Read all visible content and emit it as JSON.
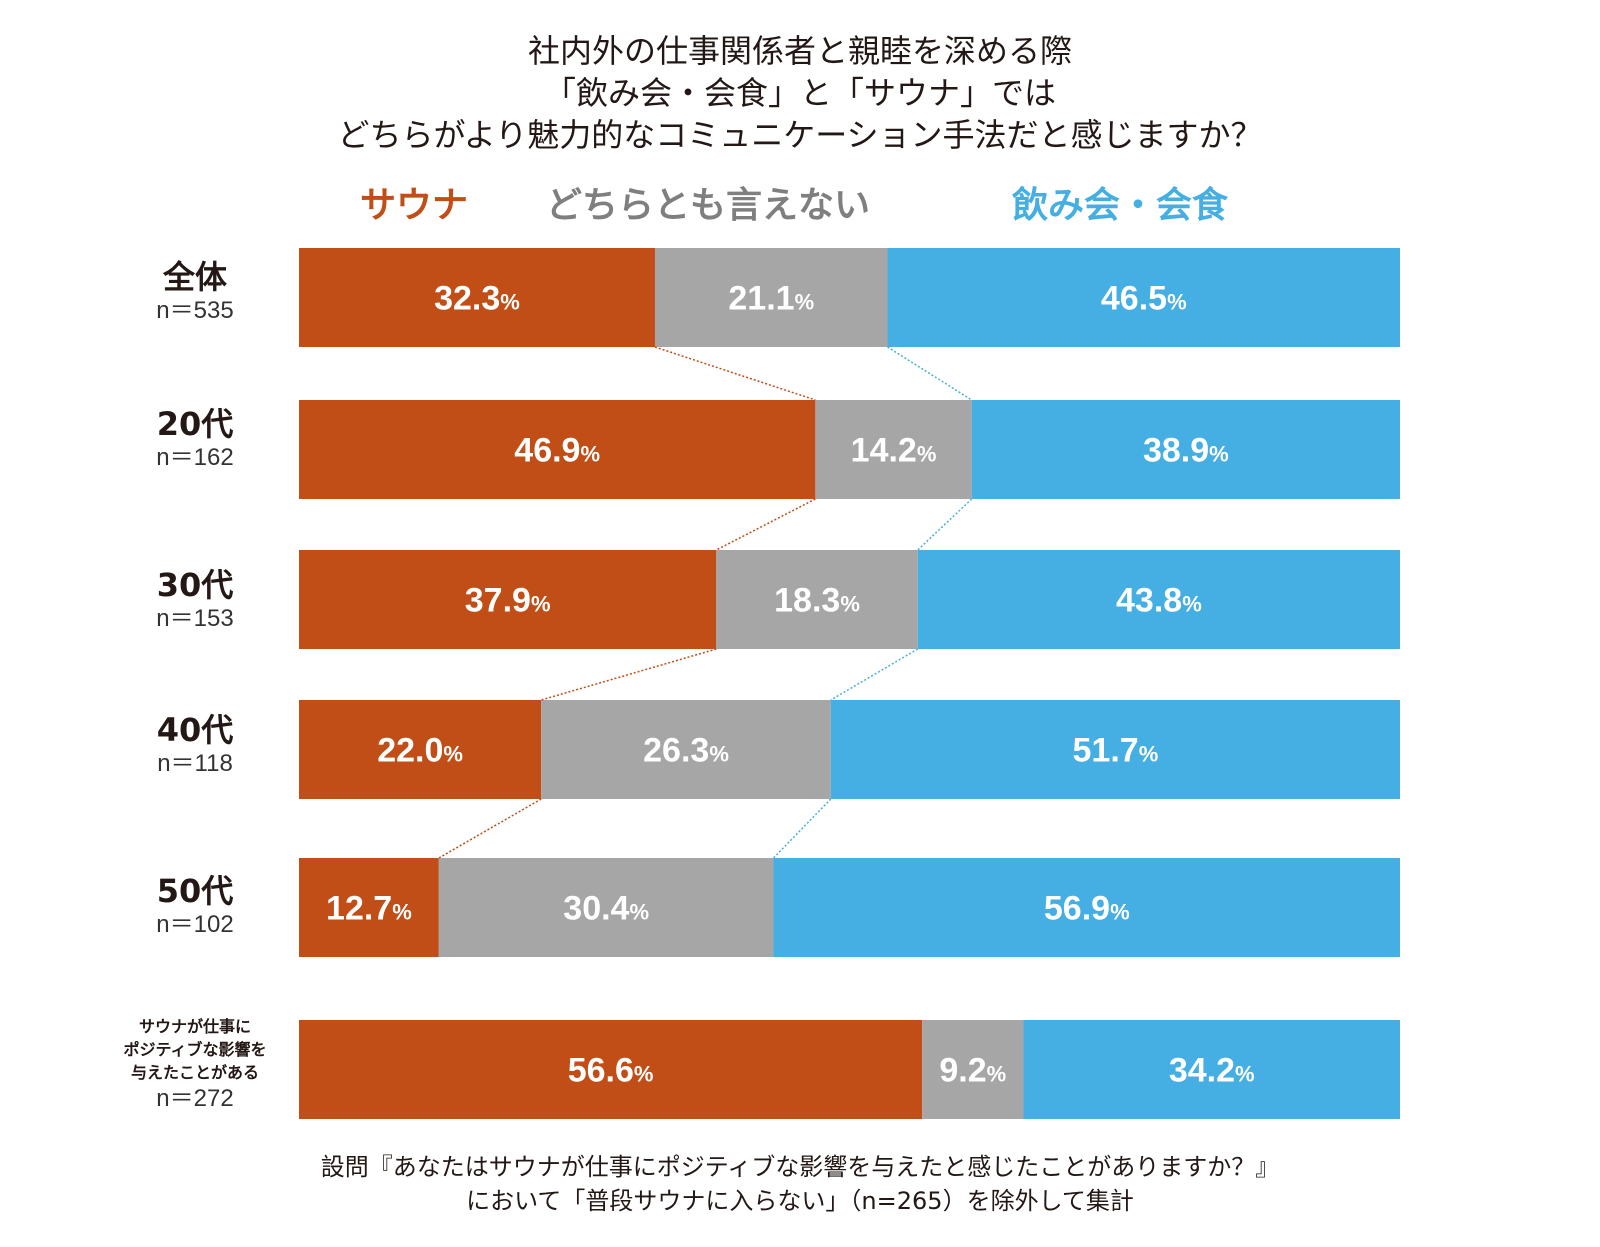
{
  "title_lines": [
    "社内外の仕事関係者と親睦を深める際",
    "「飲み会・会食」と「サウナ」では",
    "どちらがより魅力的なコミュニケーション手法だと感じますか？"
  ],
  "footnote_lines": [
    "設問『あなたはサウナが仕事にポジティブな影響を与えたと感じたことがありますか？』",
    "において「普段サウナに入らない」（n=265）を除外して集計"
  ],
  "chart_data": {
    "type": "bar",
    "orientation": "horizontal-stacked-100",
    "legend_placement": "top",
    "series": [
      {
        "name": "サウナ",
        "color": "#c04e16"
      },
      {
        "name": "どちらとも言えない",
        "color": "#a6a6a6"
      },
      {
        "name": "飲み会・会食",
        "color": "#45aee2"
      }
    ],
    "legend_colors": [
      "#c04e16",
      "#7f7f7f",
      "#45aee2"
    ],
    "rows": [
      {
        "label": "全体",
        "n": "n＝535",
        "values": [
          32.3,
          21.1,
          46.5
        ]
      },
      {
        "label": "20代",
        "n": "n＝162",
        "values": [
          46.9,
          14.2,
          38.9
        ]
      },
      {
        "label": "30代",
        "n": "n＝153",
        "values": [
          37.9,
          18.3,
          43.8
        ]
      },
      {
        "label": "40代",
        "n": "n＝118",
        "values": [
          22.0,
          26.3,
          51.7
        ]
      },
      {
        "label": "50代",
        "n": "n＝102",
        "values": [
          12.7,
          30.4,
          56.9
        ]
      },
      {
        "label_lines": [
          "サウナが仕事に",
          "ポジティブな影響を",
          "与えたことがある"
        ],
        "n": "n＝272",
        "values": [
          56.6,
          9.2,
          34.2
        ]
      }
    ],
    "value_suffix": "%",
    "connector_lines": true
  }
}
